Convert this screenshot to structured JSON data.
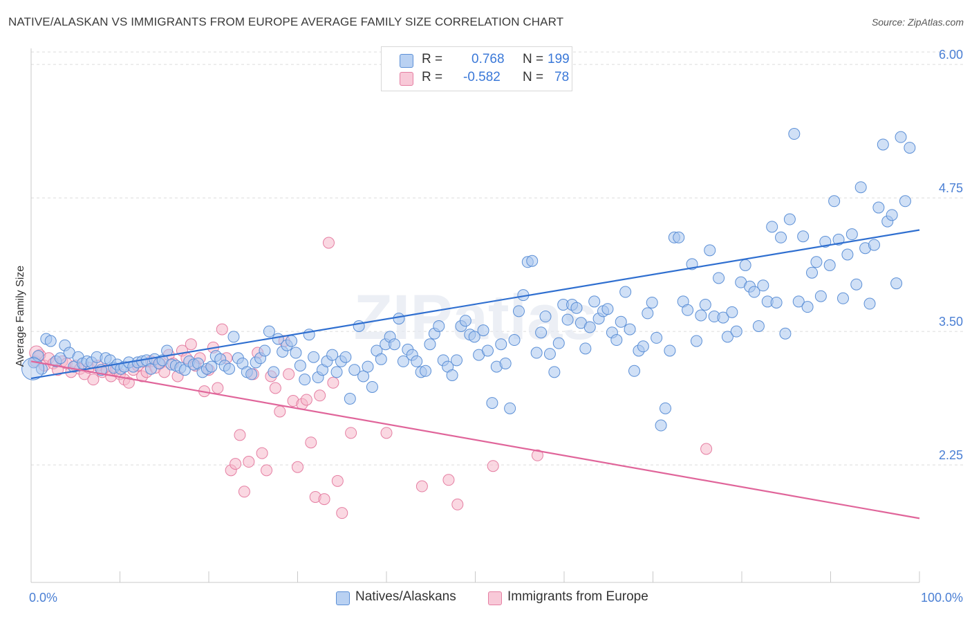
{
  "title": "NATIVE/ALASKAN VS IMMIGRANTS FROM EUROPE AVERAGE FAMILY SIZE CORRELATION CHART",
  "source": "Source: ZipAtlas.com",
  "watermark": "ZIPatlas",
  "legend": {
    "rows": [
      {
        "r_label": "R =",
        "r_value": "0.768",
        "n_label": "N =",
        "n_value": "199"
      },
      {
        "r_label": "R =",
        "r_value": "-0.582",
        "n_label": "N =",
        "n_value": "78"
      }
    ]
  },
  "bottom_legend": [
    "Natives/Alaskans",
    "Immigrants from Europe"
  ],
  "colors": {
    "blue_fill": "#a9c6ee",
    "blue_stroke": "#5b8fd6",
    "blue_line": "#2f6fd0",
    "pink_fill": "#f5b8cb",
    "pink_stroke": "#e57ea2",
    "pink_line": "#e0659a",
    "tick_text": "#4a7fd4",
    "grid": "#dcdcdc"
  },
  "chart_data": {
    "type": "scatter",
    "title": "NATIVE/ALASKAN VS IMMIGRANTS FROM EUROPE AVERAGE FAMILY SIZE CORRELATION CHART",
    "xlabel": "",
    "ylabel": "Average Family Size",
    "x_tick_labels": [
      "0.0%",
      "100.0%"
    ],
    "y_tick_labels": [
      "2.25",
      "3.50",
      "4.75",
      "6.00"
    ],
    "y_ticks": [
      2.25,
      3.5,
      4.75,
      6.0
    ],
    "xlim": [
      0,
      100
    ],
    "ylim": [
      1.15,
      6.15
    ],
    "grid": true,
    "legend_position": "top-center",
    "series": [
      {
        "name": "Natives/Alaskans",
        "r": 0.768,
        "n": 199,
        "trend": {
          "x": [
            0,
            100
          ],
          "y": [
            3.06,
            4.45
          ]
        },
        "points": [
          [
            0.3,
            3.21
          ],
          [
            0.8,
            3.27
          ],
          [
            1.2,
            3.15
          ],
          [
            1.7,
            3.43
          ],
          [
            2.2,
            3.41
          ],
          [
            2.8,
            3.22
          ],
          [
            3.3,
            3.25
          ],
          [
            3.8,
            3.37
          ],
          [
            4.3,
            3.3
          ],
          [
            4.8,
            3.17
          ],
          [
            5.3,
            3.26
          ],
          [
            5.8,
            3.2
          ],
          [
            6.3,
            3.22
          ],
          [
            6.8,
            3.21
          ],
          [
            7.4,
            3.26
          ],
          [
            7.9,
            3.14
          ],
          [
            8.4,
            3.25
          ],
          [
            8.9,
            3.23
          ],
          [
            9.3,
            3.16
          ],
          [
            9.7,
            3.19
          ],
          [
            10.1,
            3.15
          ],
          [
            10.5,
            3.17
          ],
          [
            11.0,
            3.21
          ],
          [
            11.5,
            3.17
          ],
          [
            12.0,
            3.21
          ],
          [
            12.5,
            3.22
          ],
          [
            13.0,
            3.23
          ],
          [
            13.5,
            3.15
          ],
          [
            13.9,
            3.24
          ],
          [
            14.4,
            3.2
          ],
          [
            14.8,
            3.23
          ],
          [
            15.3,
            3.32
          ],
          [
            15.8,
            3.19
          ],
          [
            16.3,
            3.18
          ],
          [
            16.8,
            3.16
          ],
          [
            17.3,
            3.14
          ],
          [
            17.8,
            3.22
          ],
          [
            18.3,
            3.19
          ],
          [
            18.8,
            3.2
          ],
          [
            19.3,
            3.12
          ],
          [
            19.8,
            3.15
          ],
          [
            20.3,
            3.17
          ],
          [
            20.8,
            3.27
          ],
          [
            21.3,
            3.24
          ],
          [
            21.8,
            3.18
          ],
          [
            22.3,
            3.15
          ],
          [
            22.8,
            3.45
          ],
          [
            23.3,
            3.25
          ],
          [
            23.8,
            3.2
          ],
          [
            24.3,
            3.12
          ],
          [
            24.8,
            3.1
          ],
          [
            25.3,
            3.21
          ],
          [
            25.8,
            3.25
          ],
          [
            26.3,
            3.32
          ],
          [
            26.8,
            3.5
          ],
          [
            27.3,
            3.12
          ],
          [
            27.8,
            3.43
          ],
          [
            28.3,
            3.31
          ],
          [
            28.8,
            3.37
          ],
          [
            29.3,
            3.41
          ],
          [
            29.8,
            3.3
          ],
          [
            30.3,
            3.18
          ],
          [
            30.8,
            3.05
          ],
          [
            31.3,
            3.47
          ],
          [
            31.8,
            3.26
          ],
          [
            32.3,
            3.07
          ],
          [
            32.8,
            3.14
          ],
          [
            33.3,
            3.22
          ],
          [
            33.9,
            3.28
          ],
          [
            34.4,
            3.12
          ],
          [
            34.9,
            3.22
          ],
          [
            35.4,
            3.26
          ],
          [
            35.9,
            2.87
          ],
          [
            36.4,
            3.14
          ],
          [
            36.9,
            3.55
          ],
          [
            37.4,
            3.08
          ],
          [
            37.9,
            3.17
          ],
          [
            38.4,
            2.98
          ],
          [
            38.9,
            3.32
          ],
          [
            39.4,
            3.24
          ],
          [
            39.9,
            3.38
          ],
          [
            40.4,
            3.45
          ],
          [
            40.9,
            3.38
          ],
          [
            41.4,
            3.62
          ],
          [
            41.9,
            3.22
          ],
          [
            42.4,
            3.33
          ],
          [
            42.9,
            3.28
          ],
          [
            43.4,
            3.22
          ],
          [
            43.9,
            3.12
          ],
          [
            44.4,
            3.13
          ],
          [
            44.9,
            3.38
          ],
          [
            45.4,
            3.48
          ],
          [
            45.9,
            3.55
          ],
          [
            46.4,
            3.23
          ],
          [
            46.9,
            3.17
          ],
          [
            47.4,
            3.09
          ],
          [
            47.9,
            3.23
          ],
          [
            48.4,
            3.55
          ],
          [
            48.9,
            3.6
          ],
          [
            49.4,
            3.47
          ],
          [
            49.9,
            3.45
          ],
          [
            50.4,
            3.28
          ],
          [
            50.9,
            3.51
          ],
          [
            51.4,
            3.32
          ],
          [
            51.9,
            2.83
          ],
          [
            52.4,
            3.17
          ],
          [
            52.9,
            3.38
          ],
          [
            53.4,
            3.2
          ],
          [
            53.9,
            2.78
          ],
          [
            54.4,
            3.42
          ],
          [
            54.9,
            3.69
          ],
          [
            55.4,
            3.84
          ],
          [
            55.9,
            4.15
          ],
          [
            56.4,
            4.16
          ],
          [
            56.9,
            3.3
          ],
          [
            57.4,
            3.49
          ],
          [
            57.9,
            3.64
          ],
          [
            58.4,
            3.29
          ],
          [
            58.9,
            3.12
          ],
          [
            59.4,
            3.39
          ],
          [
            59.9,
            3.75
          ],
          [
            60.4,
            3.61
          ],
          [
            60.9,
            3.75
          ],
          [
            61.4,
            3.72
          ],
          [
            61.9,
            3.58
          ],
          [
            62.4,
            3.34
          ],
          [
            62.9,
            3.54
          ],
          [
            63.4,
            3.78
          ],
          [
            63.9,
            3.62
          ],
          [
            64.4,
            3.69
          ],
          [
            64.9,
            3.71
          ],
          [
            65.4,
            3.49
          ],
          [
            65.9,
            3.42
          ],
          [
            66.4,
            3.59
          ],
          [
            66.9,
            3.87
          ],
          [
            67.4,
            3.52
          ],
          [
            67.9,
            3.13
          ],
          [
            68.4,
            3.32
          ],
          [
            68.9,
            3.36
          ],
          [
            69.4,
            3.67
          ],
          [
            69.9,
            3.77
          ],
          [
            70.4,
            3.44
          ],
          [
            70.9,
            2.62
          ],
          [
            71.4,
            2.78
          ],
          [
            71.9,
            3.32
          ],
          [
            72.4,
            4.38
          ],
          [
            72.9,
            4.38
          ],
          [
            73.4,
            3.78
          ],
          [
            73.9,
            3.7
          ],
          [
            74.4,
            4.13
          ],
          [
            74.9,
            3.41
          ],
          [
            75.4,
            3.65
          ],
          [
            75.9,
            3.75
          ],
          [
            76.4,
            4.26
          ],
          [
            76.9,
            3.64
          ],
          [
            77.4,
            4.0
          ],
          [
            77.9,
            3.63
          ],
          [
            78.4,
            3.45
          ],
          [
            78.9,
            3.68
          ],
          [
            79.4,
            3.5
          ],
          [
            79.9,
            3.96
          ],
          [
            80.4,
            4.12
          ],
          [
            80.9,
            3.92
          ],
          [
            81.4,
            3.87
          ],
          [
            81.9,
            3.55
          ],
          [
            82.4,
            3.93
          ],
          [
            82.9,
            3.78
          ],
          [
            83.4,
            4.48
          ],
          [
            83.9,
            3.77
          ],
          [
            84.4,
            4.38
          ],
          [
            84.9,
            3.48
          ],
          [
            85.4,
            4.55
          ],
          [
            85.9,
            5.35
          ],
          [
            86.4,
            3.78
          ],
          [
            86.9,
            4.39
          ],
          [
            87.4,
            3.73
          ],
          [
            87.9,
            4.05
          ],
          [
            88.4,
            4.15
          ],
          [
            88.9,
            3.83
          ],
          [
            89.4,
            4.34
          ],
          [
            89.9,
            4.12
          ],
          [
            90.4,
            4.72
          ],
          [
            90.9,
            4.36
          ],
          [
            91.4,
            3.81
          ],
          [
            91.9,
            4.22
          ],
          [
            92.4,
            4.41
          ],
          [
            92.9,
            3.94
          ],
          [
            93.4,
            4.85
          ],
          [
            93.9,
            4.28
          ],
          [
            94.4,
            3.76
          ],
          [
            94.9,
            4.31
          ],
          [
            95.4,
            4.66
          ],
          [
            95.9,
            5.25
          ],
          [
            96.4,
            4.53
          ],
          [
            96.9,
            4.59
          ],
          [
            97.4,
            3.95
          ],
          [
            97.9,
            5.32
          ],
          [
            98.4,
            4.72
          ],
          [
            98.9,
            5.22
          ]
        ]
      },
      {
        "name": "Immigrants from Europe",
        "r": -0.582,
        "n": 78,
        "trend": {
          "x": [
            0,
            100
          ],
          "y": [
            3.22,
            1.75
          ]
        },
        "points": [
          [
            0.5,
            3.22
          ],
          [
            1.0,
            3.28
          ],
          [
            1.5,
            3.18
          ],
          [
            2.0,
            3.25
          ],
          [
            2.5,
            3.2
          ],
          [
            3.0,
            3.14
          ],
          [
            3.5,
            3.22
          ],
          [
            4.0,
            3.2
          ],
          [
            4.5,
            3.12
          ],
          [
            5.0,
            3.18
          ],
          [
            5.5,
            3.15
          ],
          [
            6.0,
            3.1
          ],
          [
            6.5,
            3.16
          ],
          [
            7.0,
            3.05
          ],
          [
            7.5,
            3.18
          ],
          [
            8.0,
            3.12
          ],
          [
            8.5,
            3.14
          ],
          [
            9.0,
            3.08
          ],
          [
            9.5,
            3.14
          ],
          [
            10.0,
            3.1
          ],
          [
            10.5,
            3.05
          ],
          [
            11.0,
            3.02
          ],
          [
            11.5,
            3.14
          ],
          [
            12.0,
            3.18
          ],
          [
            12.5,
            3.08
          ],
          [
            13.0,
            3.12
          ],
          [
            13.5,
            3.22
          ],
          [
            14.0,
            3.16
          ],
          [
            14.5,
            3.2
          ],
          [
            15.0,
            3.12
          ],
          [
            15.5,
            3.28
          ],
          [
            16.0,
            3.2
          ],
          [
            16.5,
            3.08
          ],
          [
            17.0,
            3.32
          ],
          [
            17.5,
            3.25
          ],
          [
            18.0,
            3.38
          ],
          [
            18.5,
            3.18
          ],
          [
            19.0,
            3.25
          ],
          [
            19.5,
            2.94
          ],
          [
            20.0,
            3.14
          ],
          [
            20.5,
            3.35
          ],
          [
            21.0,
            2.97
          ],
          [
            21.5,
            3.52
          ],
          [
            22.0,
            3.25
          ],
          [
            22.5,
            2.2
          ],
          [
            23.0,
            2.26
          ],
          [
            23.5,
            2.53
          ],
          [
            24.0,
            2.0
          ],
          [
            24.5,
            2.28
          ],
          [
            25.0,
            3.1
          ],
          [
            25.5,
            3.3
          ],
          [
            26.0,
            2.36
          ],
          [
            26.5,
            2.2
          ],
          [
            27.0,
            3.08
          ],
          [
            27.5,
            2.97
          ],
          [
            28.0,
            2.75
          ],
          [
            28.5,
            3.41
          ],
          [
            29.0,
            3.1
          ],
          [
            29.5,
            2.85
          ],
          [
            30.0,
            2.23
          ],
          [
            30.5,
            2.82
          ],
          [
            31.0,
            2.86
          ],
          [
            31.5,
            2.46
          ],
          [
            32.0,
            1.95
          ],
          [
            32.5,
            2.9
          ],
          [
            33.0,
            1.93
          ],
          [
            33.5,
            4.33
          ],
          [
            34.0,
            3.02
          ],
          [
            34.5,
            2.1
          ],
          [
            35.0,
            1.8
          ],
          [
            36.0,
            2.55
          ],
          [
            40.0,
            2.55
          ],
          [
            44.0,
            2.05
          ],
          [
            47.0,
            2.11
          ],
          [
            48.0,
            1.88
          ],
          [
            52.0,
            2.24
          ],
          [
            57.0,
            2.34
          ],
          [
            76.0,
            2.4
          ]
        ]
      }
    ]
  }
}
